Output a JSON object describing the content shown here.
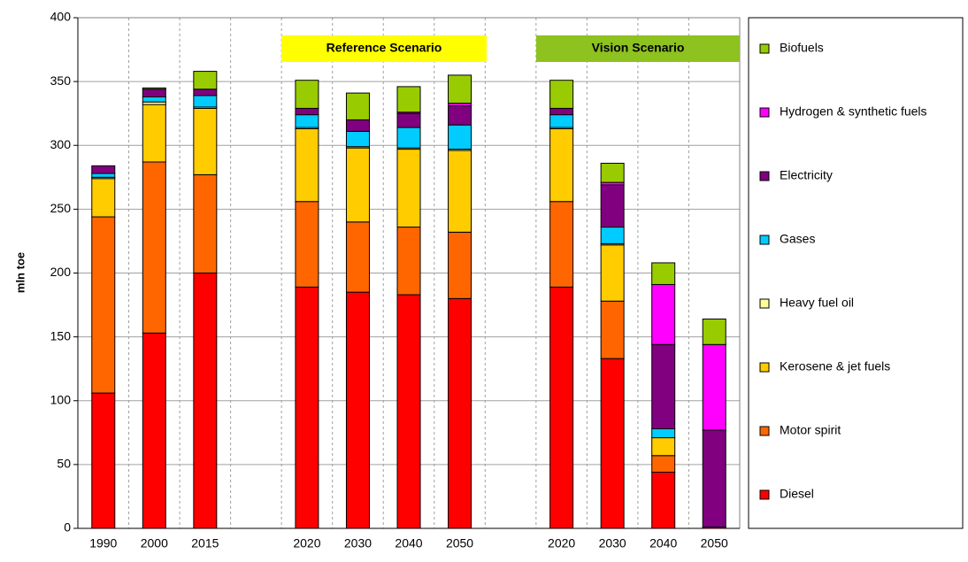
{
  "chart_data": {
    "type": "stacked_bar",
    "y_label": "mln toe",
    "categories": [
      "1990",
      "2000",
      "2015",
      null,
      "2020",
      "2030",
      "2040",
      "2050",
      null,
      "2020",
      "2030",
      "2040",
      "2050"
    ],
    "series": [
      {
        "name": "Diesel",
        "color": "#ff0000",
        "values": [
          106,
          153,
          200,
          null,
          189,
          185,
          183,
          180,
          null,
          189,
          133,
          44,
          1
        ]
      },
      {
        "name": "Motor spirit",
        "color": "#ff6600",
        "values": [
          138,
          134,
          77,
          null,
          67,
          55,
          53,
          52,
          null,
          67,
          45,
          13,
          0
        ]
      },
      {
        "name": "Kerosene & jet fuels",
        "color": "#ffcc00",
        "values": [
          30,
          45,
          52,
          null,
          57,
          58,
          61,
          64,
          null,
          57,
          44,
          14,
          0
        ]
      },
      {
        "name": "Heavy fuel oil",
        "color": "#ffff99",
        "values": [
          1,
          2,
          1,
          null,
          1,
          1,
          1,
          1,
          null,
          1,
          1,
          0,
          0
        ]
      },
      {
        "name": "Gases",
        "color": "#00ccff",
        "values": [
          3,
          4,
          9,
          null,
          10,
          12,
          16,
          19,
          null,
          10,
          13,
          7,
          0
        ]
      },
      {
        "name": "Electricity",
        "color": "#800080",
        "values": [
          6,
          6,
          5,
          null,
          5,
          9,
          11,
          15,
          null,
          5,
          33,
          66,
          76
        ]
      },
      {
        "name": "Hydrogen & synthetic fuels",
        "color": "#ff00ff",
        "values": [
          0,
          0,
          0,
          null,
          0,
          0,
          1,
          2,
          null,
          0,
          2,
          47,
          67
        ]
      },
      {
        "name": "Biofuels",
        "color": "#99cc00",
        "values": [
          0,
          1,
          14,
          null,
          22,
          21,
          20,
          22,
          null,
          22,
          15,
          17,
          20
        ]
      }
    ],
    "annotations": [
      {
        "text": "Reference Scenario",
        "color": "#ffff00"
      },
      {
        "text": "Vision  Scenario",
        "color": "#8dc21f"
      }
    ],
    "ylim": [
      0,
      400
    ],
    "yticks": [
      0,
      50,
      100,
      150,
      200,
      250,
      300,
      350,
      400
    ],
    "grid": true
  }
}
